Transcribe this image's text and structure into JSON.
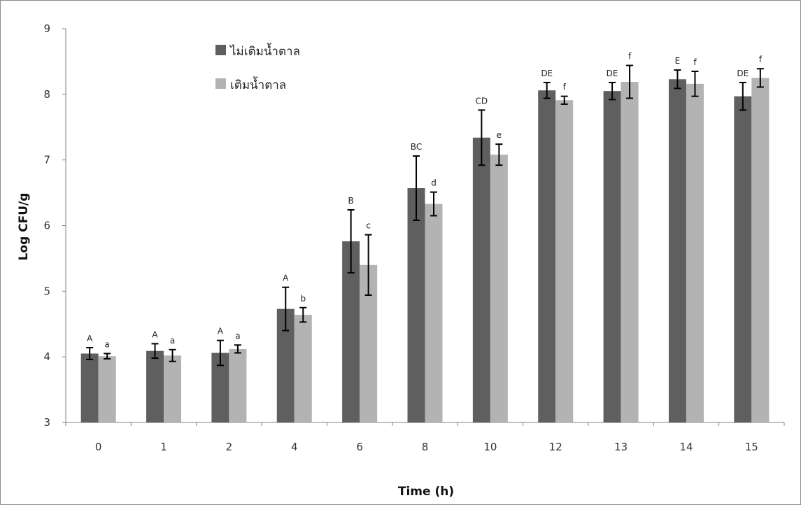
{
  "chart_data": {
    "type": "bar",
    "title": "",
    "xlabel": "Time (h)",
    "ylabel": "Log CFU/g",
    "ylim": [
      3,
      9
    ],
    "yticks": [
      "3",
      "4",
      "5",
      "6",
      "7",
      "8",
      "9"
    ],
    "categories": [
      "0",
      "1",
      "2",
      "4",
      "6",
      "8",
      "10",
      "12",
      "13",
      "14",
      "15"
    ],
    "grid": false,
    "legend_position": "top-left",
    "series": [
      {
        "name": "ไม่เติมน้ำตาล",
        "color": "#5f5f5f",
        "values": [
          4.05,
          4.09,
          4.06,
          4.73,
          5.76,
          6.57,
          7.34,
          8.06,
          8.05,
          8.23,
          7.97
        ],
        "errors": [
          0.09,
          0.11,
          0.19,
          0.33,
          0.48,
          0.49,
          0.42,
          0.12,
          0.13,
          0.14,
          0.21
        ],
        "letters": [
          "A",
          "A",
          "A",
          "A",
          "B",
          "BC",
          "CD",
          "DE",
          "DE",
          "E",
          "DE"
        ]
      },
      {
        "name": "เติมน้ำตาล",
        "color": "#b3b3b3",
        "values": [
          4.01,
          4.02,
          4.12,
          4.64,
          5.4,
          6.33,
          7.08,
          7.91,
          8.19,
          8.16,
          8.25
        ],
        "errors": [
          0.04,
          0.09,
          0.06,
          0.11,
          0.46,
          0.18,
          0.16,
          0.06,
          0.25,
          0.19,
          0.14
        ],
        "letters": [
          "a",
          "a",
          "a",
          "b",
          "c",
          "d",
          "e",
          "f",
          "f",
          "f",
          "f"
        ]
      }
    ]
  }
}
